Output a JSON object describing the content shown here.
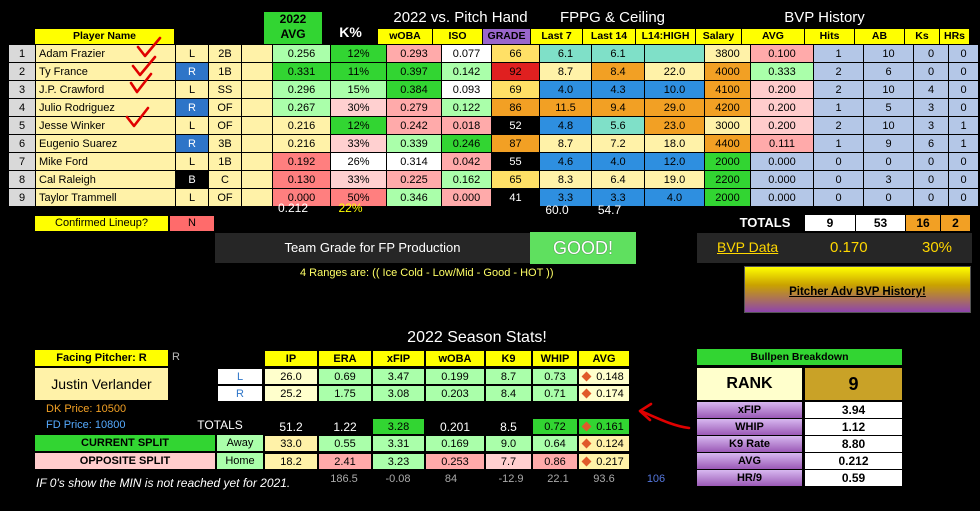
{
  "header": {
    "avg_year": "2022",
    "avg": "AVG",
    "kpct": "K%",
    "pitch_hand": "2022 vs. Pitch Hand",
    "fppg": "FPPG & Ceiling",
    "bvp": "BVP History",
    "cols": {
      "player": "Player Name",
      "woba": "wOBA",
      "iso": "ISO",
      "grade": "GRADE",
      "last7": "Last 7",
      "last14": "Last 14",
      "l14high": "L14:HIGH",
      "salary": "Salary",
      "bavg": "AVG",
      "hits": "Hits",
      "ab": "AB",
      "ks": "Ks",
      "hrs": "HRs"
    }
  },
  "players": [
    {
      "num": "1",
      "name": "Adam Frazier",
      "hand": "L",
      "pos": "2B",
      "avg": "0.256",
      "k": "12%",
      "woba": "0.293",
      "iso": "0.077",
      "grade": "66",
      "l7": "6.1",
      "l14": "6.1",
      "high": "",
      "sal": "3800",
      "bavg": "0.100",
      "hits": "1",
      "ab": "10",
      "ks": "0",
      "hrs": "0",
      "check": true
    },
    {
      "num": "2",
      "name": "Ty France",
      "hand": "R",
      "pos": "1B",
      "avg": "0.331",
      "k": "11%",
      "woba": "0.397",
      "iso": "0.142",
      "grade": "92",
      "l7": "8.7",
      "l14": "8.4",
      "high": "22.0",
      "sal": "4000",
      "bavg": "0.333",
      "hits": "2",
      "ab": "6",
      "ks": "0",
      "hrs": "0",
      "check": true
    },
    {
      "num": "3",
      "name": "J.P. Crawford",
      "hand": "L",
      "pos": "SS",
      "avg": "0.296",
      "k": "15%",
      "woba": "0.384",
      "iso": "0.093",
      "grade": "69",
      "l7": "4.0",
      "l14": "4.3",
      "high": "10.0",
      "sal": "4100",
      "bavg": "0.200",
      "hits": "2",
      "ab": "10",
      "ks": "4",
      "hrs": "0",
      "check": true
    },
    {
      "num": "4",
      "name": "Julio Rodriguez",
      "hand": "R",
      "pos": "OF",
      "avg": "0.267",
      "k": "30%",
      "woba": "0.279",
      "iso": "0.122",
      "grade": "86",
      "l7": "11.5",
      "l14": "9.4",
      "high": "29.0",
      "sal": "4200",
      "bavg": "0.200",
      "hits": "1",
      "ab": "5",
      "ks": "3",
      "hrs": "0",
      "check": false
    },
    {
      "num": "5",
      "name": "Jesse Winker",
      "hand": "L",
      "pos": "OF",
      "avg": "0.216",
      "k": "12%",
      "woba": "0.242",
      "iso": "0.018",
      "grade": "52",
      "l7": "4.8",
      "l14": "5.6",
      "high": "23.0",
      "sal": "3000",
      "bavg": "0.200",
      "hits": "2",
      "ab": "10",
      "ks": "3",
      "hrs": "1",
      "check": true
    },
    {
      "num": "6",
      "name": "Eugenio Suarez",
      "hand": "R",
      "pos": "3B",
      "avg": "0.216",
      "k": "33%",
      "woba": "0.339",
      "iso": "0.246",
      "grade": "87",
      "l7": "8.7",
      "l14": "7.2",
      "high": "18.0",
      "sal": "4400",
      "bavg": "0.111",
      "hits": "1",
      "ab": "9",
      "ks": "6",
      "hrs": "1",
      "check": false
    },
    {
      "num": "7",
      "name": "Mike Ford",
      "hand": "L",
      "pos": "1B",
      "avg": "0.192",
      "k": "26%",
      "woba": "0.314",
      "iso": "0.042",
      "grade": "55",
      "l7": "4.6",
      "l14": "4.0",
      "high": "12.0",
      "sal": "2000",
      "bavg": "0.000",
      "hits": "0",
      "ab": "0",
      "ks": "0",
      "hrs": "0",
      "check": false
    },
    {
      "num": "8",
      "name": "Cal Raleigh",
      "hand": "B",
      "pos": "C",
      "avg": "0.130",
      "k": "33%",
      "woba": "0.225",
      "iso": "0.162",
      "grade": "65",
      "l7": "8.3",
      "l14": "6.4",
      "high": "19.0",
      "sal": "2200",
      "bavg": "0.000",
      "hits": "0",
      "ab": "3",
      "ks": "0",
      "hrs": "0",
      "check": false
    },
    {
      "num": "9",
      "name": "Taylor Trammell",
      "hand": "L",
      "pos": "OF",
      "avg": "0.000",
      "k": "50%",
      "woba": "0.346",
      "iso": "0.000",
      "grade": "41",
      "l7": "3.3",
      "l14": "3.3",
      "high": "4.0",
      "sal": "2000",
      "bavg": "0.000",
      "hits": "0",
      "ab": "0",
      "ks": "0",
      "hrs": "0",
      "check": false
    }
  ],
  "summary": {
    "avg": "0.212",
    "k": "22%",
    "l7": "60.0",
    "l14": "54.7"
  },
  "lineup": {
    "label": "Confirmed Lineup?",
    "value": "N"
  },
  "totals": {
    "label": "TOTALS",
    "hits": "9",
    "ab": "53",
    "ks": "16",
    "hrs": "2"
  },
  "team_grade": {
    "label": "Team Grade for FP Production",
    "value": "GOOD!"
  },
  "ranges_note": "4 Ranges are: (( Ice Cold - Low/Mid - Good - HOT ))",
  "bvp_data": {
    "label": "BVP Data",
    "avg": "0.170",
    "k": "30%"
  },
  "pitcher_adv_button": "Pitcher Adv BVP History!",
  "season_title": "2022 Season Stats!",
  "pitcher": {
    "facing_label": "Facing Pitcher: R",
    "side_flag": "R",
    "name": "Justin Verlander",
    "dk": "DK Price: 10500",
    "fd": "FD Price: 10800"
  },
  "pitch_cols": [
    "IP",
    "ERA",
    "xFIP",
    "wOBA",
    "K9",
    "WHIP",
    "AVG"
  ],
  "pitch_rows": [
    {
      "label": "L",
      "vals": [
        "26.0",
        "0.69",
        "3.47",
        "0.199",
        "8.7",
        "0.73",
        "0.148"
      ]
    },
    {
      "label": "R",
      "vals": [
        "25.2",
        "1.75",
        "3.08",
        "0.203",
        "8.4",
        "0.71",
        "0.174"
      ]
    }
  ],
  "pitch_totals": {
    "label": "TOTALS",
    "vals": [
      "51.2",
      "1.22",
      "3.28",
      "0.201",
      "8.5",
      "0.72",
      "0.161"
    ]
  },
  "current_split": {
    "label": "CURRENT SPLIT",
    "side": "Away",
    "vals": [
      "33.0",
      "0.55",
      "3.31",
      "0.169",
      "9.0",
      "0.64",
      "0.124"
    ]
  },
  "opposite_split": {
    "label": "OPPOSITE SPLIT",
    "side": "Home",
    "vals": [
      "18.2",
      "2.41",
      "3.23",
      "0.253",
      "7.7",
      "0.86",
      "0.217"
    ]
  },
  "rank_row": [
    "186.5",
    "-0.08",
    "84",
    "-12.9",
    "22.1",
    "93.6",
    "106"
  ],
  "footnote": "IF 0's show the MIN is not reached yet for 2021.",
  "bullpen": {
    "title": "Bullpen Breakdown",
    "rank_label": "RANK",
    "rank": "9",
    "rows": [
      {
        "label": "xFIP",
        "value": "3.94"
      },
      {
        "label": "WHIP",
        "value": "1.12"
      },
      {
        "label": "K9 Rate",
        "value": "8.80"
      },
      {
        "label": "AVG",
        "value": "0.212"
      },
      {
        "label": "HR/9",
        "value": "0.59"
      }
    ]
  },
  "colors": {
    "yellow": "#ffff00",
    "green": "#5fe05f",
    "red": "#ff5050",
    "purple": "#8e44ad",
    "blue": "#2e75c8",
    "check": "#e00000"
  }
}
